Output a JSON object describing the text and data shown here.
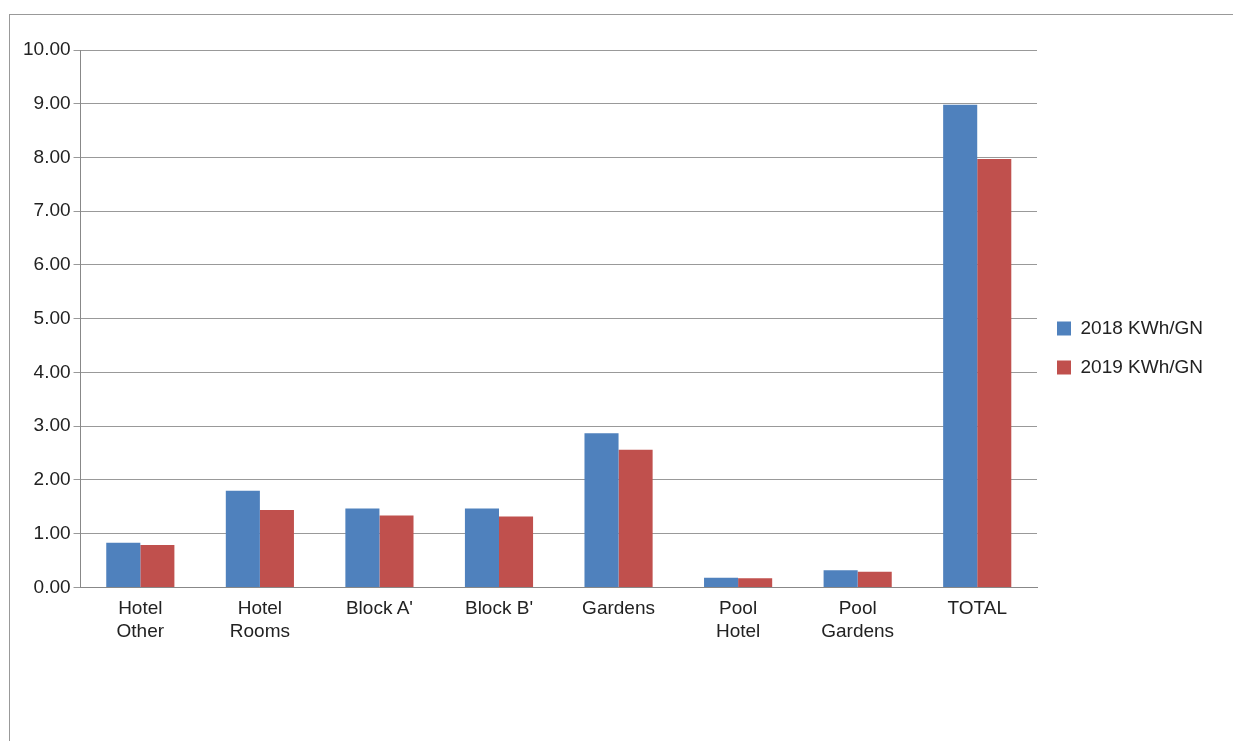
{
  "chart_data": {
    "type": "bar",
    "categories": [
      "Hotel Other",
      "Hotel Rooms",
      "Block A'",
      "Block B'",
      "Gardens",
      "Pool Hotel",
      "Pool Gardens",
      "TOTAL"
    ],
    "series": [
      {
        "name": "2018 KWh/GN",
        "color": "#4f81bd",
        "values": [
          0.83,
          1.8,
          1.47,
          1.47,
          2.87,
          0.18,
          0.32,
          8.98
        ]
      },
      {
        "name": "2019 KWh/GN",
        "color": "#c0504d",
        "values": [
          0.79,
          1.44,
          1.34,
          1.32,
          2.56,
          0.17,
          0.29,
          7.97
        ]
      }
    ],
    "ylim": [
      0,
      10
    ],
    "yticks": [
      {
        "value": 0,
        "label": "0.00"
      },
      {
        "value": 1,
        "label": "1.00"
      },
      {
        "value": 2,
        "label": "2.00"
      },
      {
        "value": 3,
        "label": "3.00"
      },
      {
        "value": 4,
        "label": "4.00"
      },
      {
        "value": 5,
        "label": "5.00"
      },
      {
        "value": 6,
        "label": "6.00"
      },
      {
        "value": 7,
        "label": "7.00"
      },
      {
        "value": 8,
        "label": "8.00"
      },
      {
        "value": 9,
        "label": "9.00"
      },
      {
        "value": 10,
        "label": "10.00"
      }
    ],
    "grid": "y",
    "legend": "right"
  }
}
